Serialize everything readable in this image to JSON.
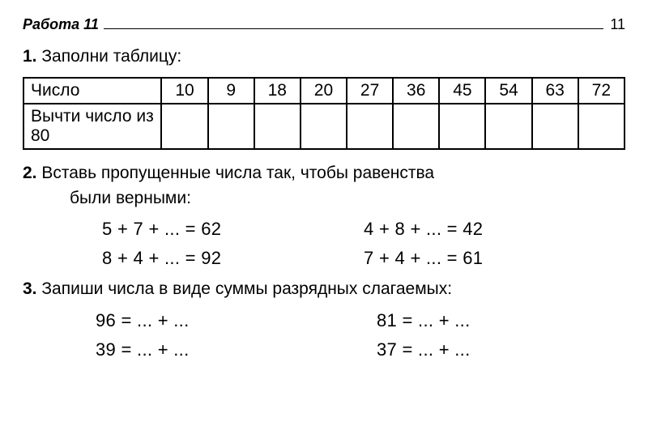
{
  "header": {
    "label": "Работа 11",
    "page": "11"
  },
  "task1": {
    "num": "1.",
    "text": "Заполни таблицу:",
    "row1_label": "Число",
    "row2_label": "Вычти число из 80",
    "cells": [
      "10",
      "9",
      "18",
      "20",
      "27",
      "36",
      "45",
      "54",
      "63",
      "72"
    ],
    "answers": [
      "",
      "",
      "",
      "",
      "",
      "",
      "",
      "",
      "",
      ""
    ]
  },
  "task2": {
    "num": "2.",
    "line1": "Вставь пропущенные числа так, чтобы равенства",
    "line2": "были верными:",
    "col1": [
      "5 + 7 + ... = 62",
      "8 + 4 + ... = 92"
    ],
    "col2": [
      "4 + 8 + ... = 42",
      "7 + 4 + ... = 61"
    ]
  },
  "task3": {
    "num": "3.",
    "text": "Запиши числа в виде суммы разрядных слагаемых:",
    "col1": [
      "96 =  ... + ...",
      "39 =  ... + ..."
    ],
    "col2": [
      "81 =  ... + ...",
      "37 =  ... + ..."
    ]
  }
}
